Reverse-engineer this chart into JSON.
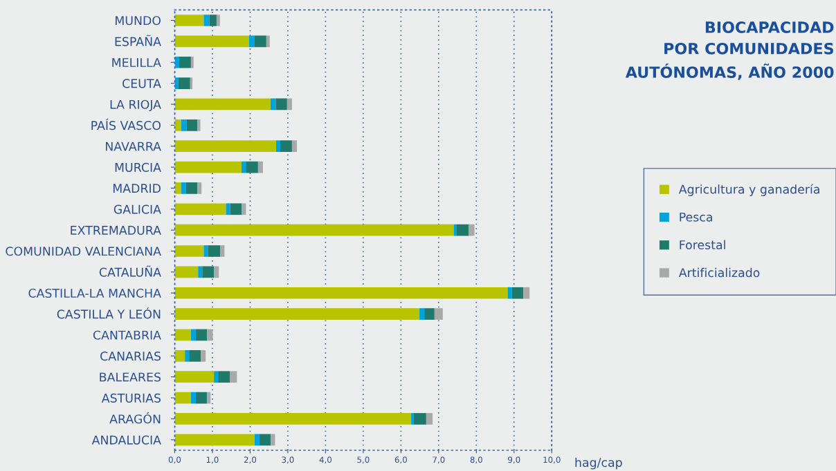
{
  "chart_data": {
    "type": "bar",
    "orientation": "horizontal",
    "stacked": true,
    "title": "BIOCAPACIDAD\nPOR COMUNIDADES\nAUTÓNOMAS, AÑO 2000",
    "xlabel": "hag/cap",
    "categories": [
      "MUNDO",
      "ESPAÑA",
      "MELILLA",
      "CEUTA",
      "LA RIOJA",
      "PAÍS VASCO",
      "NAVARRA",
      "MURCIA",
      "MADRID",
      "GALICIA",
      "EXTREMADURA",
      "COMUNIDAD VALENCIANA",
      "CATALUÑA",
      "CASTILLA-LA MANCHA",
      "CASTILLA Y LEÓN",
      "CANTABRIA",
      "CANARIAS",
      "BALEARES",
      "ASTURIAS",
      "ARAGÓN",
      "ANDALUCIA"
    ],
    "series": [
      {
        "name": "Agricultura y ganadería",
        "color": "#b8c400",
        "values": [
          0.77,
          1.97,
          0,
          0,
          2.54,
          0.17,
          2.69,
          1.77,
          0.17,
          1.36,
          7.4,
          0.77,
          0.62,
          8.83,
          6.49,
          0.43,
          0.27,
          1.04,
          0.43,
          6.27,
          2.12
        ]
      },
      {
        "name": "Pesca",
        "color": "#00a3dc",
        "values": [
          0.15,
          0.15,
          0.12,
          0.1,
          0.14,
          0.14,
          0.11,
          0.13,
          0.13,
          0.11,
          0.08,
          0.11,
          0.11,
          0.11,
          0.13,
          0.13,
          0.11,
          0.11,
          0.13,
          0.07,
          0.13
        ]
      },
      {
        "name": "Forestal",
        "color": "#1f7a6c",
        "values": [
          0.19,
          0.31,
          0.31,
          0.31,
          0.3,
          0.29,
          0.31,
          0.31,
          0.3,
          0.31,
          0.32,
          0.33,
          0.31,
          0.31,
          0.27,
          0.3,
          0.31,
          0.31,
          0.3,
          0.33,
          0.3
        ]
      },
      {
        "name": "Artificializado",
        "color": "#a9a9a9",
        "values": [
          0.09,
          0.09,
          0.07,
          0.06,
          0.13,
          0.08,
          0.13,
          0.13,
          0.11,
          0.11,
          0.15,
          0.11,
          0.13,
          0.16,
          0.22,
          0.15,
          0.13,
          0.19,
          0.09,
          0.17,
          0.11
        ]
      }
    ],
    "xlim": [
      0,
      10
    ],
    "xticks": [
      {
        "value": 0,
        "label": "0,0"
      },
      {
        "value": 1,
        "label": "1,0"
      },
      {
        "value": 2,
        "label": "2,0"
      },
      {
        "value": 3,
        "label": "3,0"
      },
      {
        "value": 4,
        "label": "4,0"
      },
      {
        "value": 5,
        "label": "5,0"
      },
      {
        "value": 6,
        "label": "6,0"
      },
      {
        "value": 7,
        "label": "7,0"
      },
      {
        "value": 8,
        "label": "8,0"
      },
      {
        "value": 9,
        "label": "9,0"
      },
      {
        "value": 10,
        "label": "10,0"
      }
    ],
    "grid": "x",
    "legend": "right"
  }
}
